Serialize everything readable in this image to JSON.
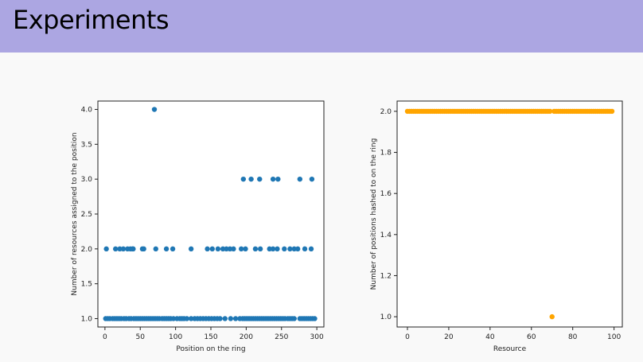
{
  "slide": {
    "title": "Experiments",
    "title_bar_color": "#aca6e2"
  },
  "chart_data": [
    {
      "type": "scatter",
      "title": "",
      "xlabel": "Position on the ring",
      "ylabel": "Number of resources assigned to the position",
      "xlim": [
        -10,
        310
      ],
      "ylim": [
        0.88,
        4.12
      ],
      "xticks": [
        0,
        50,
        100,
        150,
        200,
        250,
        300
      ],
      "yticks": [
        1.0,
        1.5,
        2.0,
        2.5,
        3.0,
        3.5,
        4.0
      ],
      "color": "#1f77b4",
      "grid": false,
      "points": [
        [
          70,
          4
        ],
        [
          196,
          3
        ],
        [
          207,
          3
        ],
        [
          219,
          3
        ],
        [
          238,
          3
        ],
        [
          245,
          3
        ],
        [
          276,
          3
        ],
        [
          293,
          3
        ],
        [
          2,
          2
        ],
        [
          15,
          2
        ],
        [
          21,
          2
        ],
        [
          26,
          2
        ],
        [
          32,
          2
        ],
        [
          36,
          2
        ],
        [
          39,
          2
        ],
        [
          40,
          2
        ],
        [
          53,
          2
        ],
        [
          55,
          2
        ],
        [
          72,
          2
        ],
        [
          87,
          2
        ],
        [
          96,
          2
        ],
        [
          122,
          2
        ],
        [
          145,
          2
        ],
        [
          152,
          2
        ],
        [
          160,
          2
        ],
        [
          167,
          2
        ],
        [
          172,
          2
        ],
        [
          177,
          2
        ],
        [
          182,
          2
        ],
        [
          193,
          2
        ],
        [
          199,
          2
        ],
        [
          213,
          2
        ],
        [
          220,
          2
        ],
        [
          233,
          2
        ],
        [
          238,
          2
        ],
        [
          244,
          2
        ],
        [
          254,
          2
        ],
        [
          262,
          2
        ],
        [
          268,
          2
        ],
        [
          273,
          2
        ],
        [
          283,
          2
        ],
        [
          292,
          2
        ],
        [
          1,
          1
        ],
        [
          4,
          1
        ],
        [
          7,
          1
        ],
        [
          11,
          1
        ],
        [
          14,
          1
        ],
        [
          17,
          1
        ],
        [
          20,
          1
        ],
        [
          23,
          1
        ],
        [
          27,
          1
        ],
        [
          30,
          1
        ],
        [
          34,
          1
        ],
        [
          37,
          1
        ],
        [
          41,
          1
        ],
        [
          44,
          1
        ],
        [
          47,
          1
        ],
        [
          50,
          1
        ],
        [
          53,
          1
        ],
        [
          56,
          1
        ],
        [
          59,
          1
        ],
        [
          62,
          1
        ],
        [
          65,
          1
        ],
        [
          68,
          1
        ],
        [
          71,
          1
        ],
        [
          74,
          1
        ],
        [
          77,
          1
        ],
        [
          81,
          1
        ],
        [
          84,
          1
        ],
        [
          87,
          1
        ],
        [
          90,
          1
        ],
        [
          93,
          1
        ],
        [
          97,
          1
        ],
        [
          102,
          1
        ],
        [
          106,
          1
        ],
        [
          109,
          1
        ],
        [
          112,
          1
        ],
        [
          116,
          1
        ],
        [
          122,
          1
        ],
        [
          127,
          1
        ],
        [
          131,
          1
        ],
        [
          135,
          1
        ],
        [
          139,
          1
        ],
        [
          143,
          1
        ],
        [
          147,
          1
        ],
        [
          151,
          1
        ],
        [
          155,
          1
        ],
        [
          159,
          1
        ],
        [
          163,
          1
        ],
        [
          170,
          1
        ],
        [
          178,
          1
        ],
        [
          185,
          1
        ],
        [
          191,
          1
        ],
        [
          195,
          1
        ],
        [
          198,
          1
        ],
        [
          201,
          1
        ],
        [
          204,
          1
        ],
        [
          207,
          1
        ],
        [
          210,
          1
        ],
        [
          213,
          1
        ],
        [
          216,
          1
        ],
        [
          219,
          1
        ],
        [
          222,
          1
        ],
        [
          225,
          1
        ],
        [
          228,
          1
        ],
        [
          231,
          1
        ],
        [
          234,
          1
        ],
        [
          237,
          1
        ],
        [
          240,
          1
        ],
        [
          243,
          1
        ],
        [
          246,
          1
        ],
        [
          249,
          1
        ],
        [
          252,
          1
        ],
        [
          255,
          1
        ],
        [
          259,
          1
        ],
        [
          262,
          1
        ],
        [
          265,
          1
        ],
        [
          268,
          1
        ],
        [
          276,
          1
        ],
        [
          279,
          1
        ],
        [
          282,
          1
        ],
        [
          285,
          1
        ],
        [
          288,
          1
        ],
        [
          291,
          1
        ],
        [
          294,
          1
        ],
        [
          297,
          1
        ]
      ]
    },
    {
      "type": "scatter",
      "title": "",
      "xlabel": "Resource",
      "ylabel": "Number of positions hashed to on the ring",
      "xlim": [
        -5,
        104
      ],
      "ylim": [
        0.95,
        2.05
      ],
      "xticks": [
        0,
        20,
        40,
        60,
        80,
        100
      ],
      "yticks": [
        1.0,
        1.2,
        1.4,
        1.6,
        1.8,
        2.0
      ],
      "color": "#ffa500",
      "grid": false,
      "points_note_values": "resources 0-99 each at 2.0 except resource 70 at 1.0",
      "x": [
        0,
        1,
        2,
        3,
        4,
        5,
        6,
        7,
        8,
        9,
        10,
        11,
        12,
        13,
        14,
        15,
        16,
        17,
        18,
        19,
        20,
        21,
        22,
        23,
        24,
        25,
        26,
        27,
        28,
        29,
        30,
        31,
        32,
        33,
        34,
        35,
        36,
        37,
        38,
        39,
        40,
        41,
        42,
        43,
        44,
        45,
        46,
        47,
        48,
        49,
        50,
        51,
        52,
        53,
        54,
        55,
        56,
        57,
        58,
        59,
        60,
        61,
        62,
        63,
        64,
        65,
        66,
        67,
        68,
        69,
        70,
        71,
        72,
        73,
        74,
        75,
        76,
        77,
        78,
        79,
        80,
        81,
        82,
        83,
        84,
        85,
        86,
        87,
        88,
        89,
        90,
        91,
        92,
        93,
        94,
        95,
        96,
        97,
        98,
        99
      ],
      "y": [
        2,
        2,
        2,
        2,
        2,
        2,
        2,
        2,
        2,
        2,
        2,
        2,
        2,
        2,
        2,
        2,
        2,
        2,
        2,
        2,
        2,
        2,
        2,
        2,
        2,
        2,
        2,
        2,
        2,
        2,
        2,
        2,
        2,
        2,
        2,
        2,
        2,
        2,
        2,
        2,
        2,
        2,
        2,
        2,
        2,
        2,
        2,
        2,
        2,
        2,
        2,
        2,
        2,
        2,
        2,
        2,
        2,
        2,
        2,
        2,
        2,
        2,
        2,
        2,
        2,
        2,
        2,
        2,
        2,
        2,
        1,
        2,
        2,
        2,
        2,
        2,
        2,
        2,
        2,
        2,
        2,
        2,
        2,
        2,
        2,
        2,
        2,
        2,
        2,
        2,
        2,
        2,
        2,
        2,
        2,
        2,
        2,
        2,
        2,
        2
      ]
    }
  ]
}
